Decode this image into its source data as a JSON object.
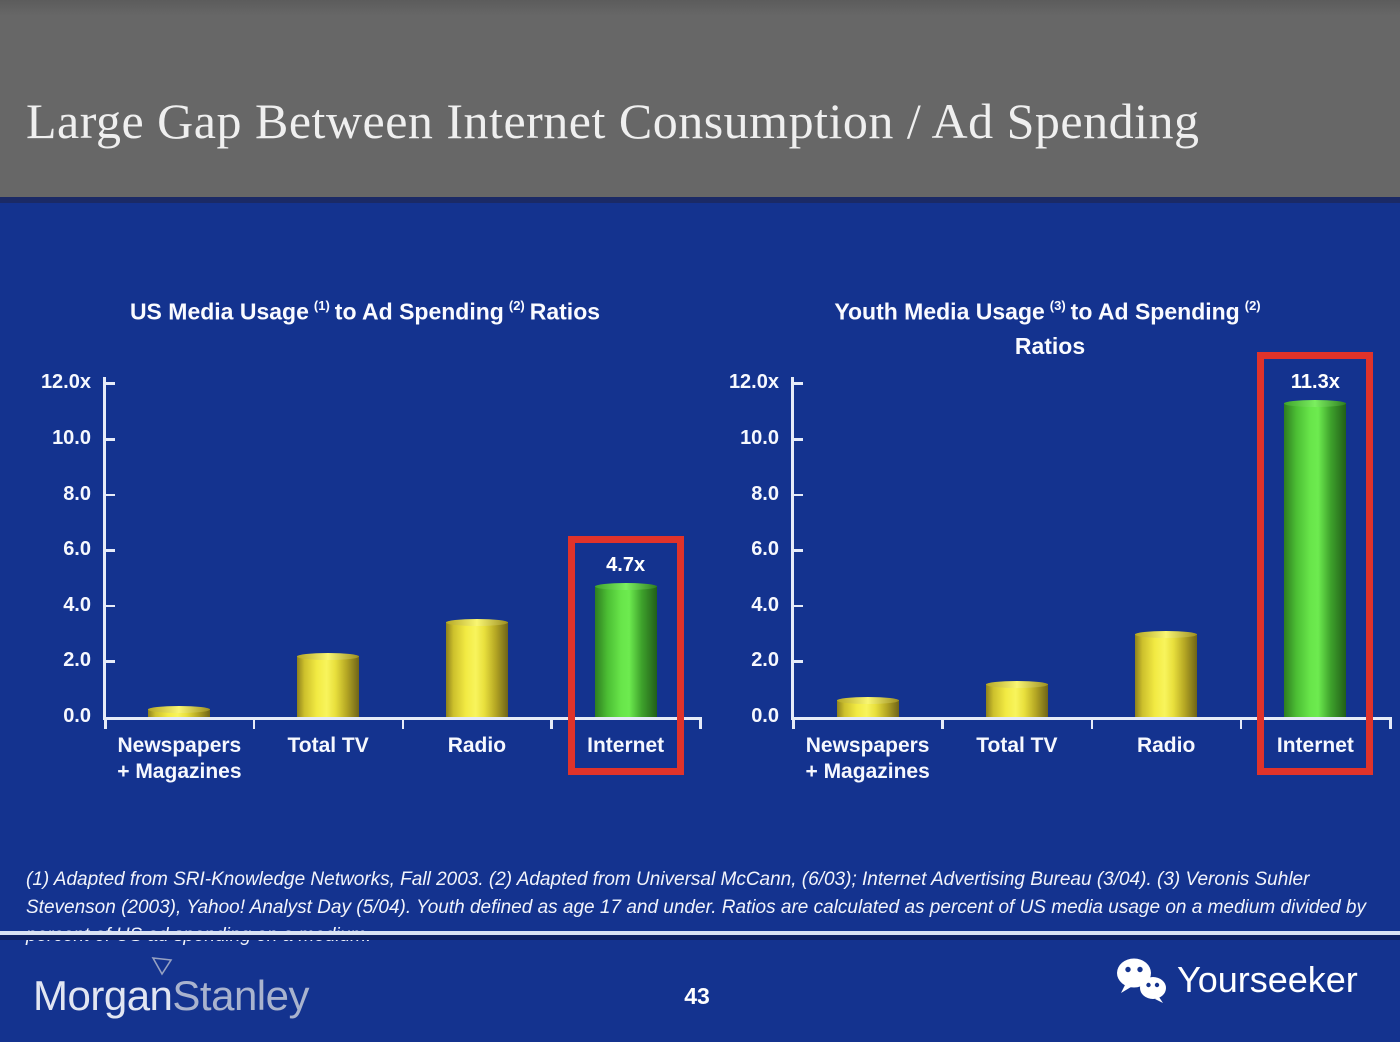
{
  "header": {
    "title": "Large Gap Between Internet Consumption / Ad Spending"
  },
  "charts": {
    "left": {
      "title_parts": {
        "seg1": "US Media Usage",
        "sup1": "(1)",
        "seg2": "to Ad Spending",
        "sup2": "(2)",
        "seg3": "Ratios"
      }
    },
    "right": {
      "title_parts": {
        "seg1": "Youth Media Usage",
        "sup1": "(3)",
        "seg2": "to Ad Spending",
        "sup2": "(2)"
      },
      "title_line2": "Ratios"
    }
  },
  "chart_data": [
    {
      "type": "bar",
      "title": "US Media Usage (1) to Ad Spending (2) Ratios",
      "categories": [
        "Newspapers + Magazines",
        "Total TV",
        "Radio",
        "Internet"
      ],
      "values": [
        0.3,
        2.2,
        3.4,
        4.7
      ],
      "value_labels": [
        null,
        null,
        null,
        "4.7x"
      ],
      "bar_colors": [
        "#F2EA43",
        "#F2EA43",
        "#F2EA43",
        "#55D83F"
      ],
      "highlight_index": 3,
      "highlight_color": "#E0332A",
      "ylim": [
        0,
        12
      ],
      "y_ticks": [
        {
          "value": 12,
          "label": "12.0x"
        },
        {
          "value": 10,
          "label": "10.0"
        },
        {
          "value": 8,
          "label": "8.0"
        },
        {
          "value": 6,
          "label": "6.0"
        },
        {
          "value": 4,
          "label": "4.0"
        },
        {
          "value": 2,
          "label": "2.0"
        },
        {
          "value": 0,
          "label": "0.0"
        }
      ],
      "grid": false,
      "legend": null
    },
    {
      "type": "bar",
      "title": "Youth Media Usage (3) to Ad Spending (2) Ratios",
      "categories": [
        "Newspapers + Magazines",
        "Total TV",
        "Radio",
        "Internet"
      ],
      "values": [
        0.6,
        1.2,
        3.0,
        11.3
      ],
      "value_labels": [
        null,
        null,
        null,
        "11.3x"
      ],
      "bar_colors": [
        "#F2EA43",
        "#F2EA43",
        "#F2EA43",
        "#55D83F"
      ],
      "highlight_index": 3,
      "highlight_color": "#E0332A",
      "ylim": [
        0,
        12
      ],
      "y_ticks": [
        {
          "value": 12,
          "label": "12.0x"
        },
        {
          "value": 10,
          "label": "10.0"
        },
        {
          "value": 8,
          "label": "8.0"
        },
        {
          "value": 6,
          "label": "6.0"
        },
        {
          "value": 4,
          "label": "4.0"
        },
        {
          "value": 2,
          "label": "2.0"
        },
        {
          "value": 0,
          "label": "0.0"
        }
      ],
      "grid": false,
      "legend": null
    }
  ],
  "footnote": "(1) Adapted from SRI-Knowledge Networks, Fall 2003.  (2) Adapted from Universal McCann, (6/03); Internet Advertising Bureau (3/04). (3) Veronis Suhler Stevenson (2003), Yahoo! Analyst Day (5/04).  Youth defined as age 17 and under.  Ratios are calculated as percent of US media usage on a medium divided by percent of US ad spending on a medium.",
  "footer": {
    "brand_morgan": "Morgan",
    "brand_stanley": "Stanley",
    "page_number": "43",
    "watermark_label": "Yourseeker"
  },
  "colors": {
    "background": "#14338F",
    "header_gray": "#676767",
    "bar_yellow": "#F2EA43",
    "bar_green": "#55D83F",
    "highlight_red": "#E0332A",
    "axis": "#E6EBF8",
    "text": "#FFFFFF"
  }
}
